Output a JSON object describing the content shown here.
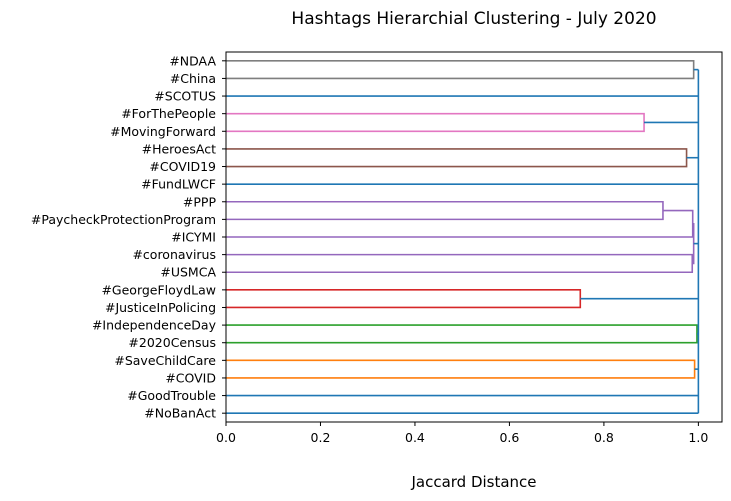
{
  "chart_data": {
    "type": "dendrogram",
    "orientation": "horizontal",
    "title": "Hashtags Hierarchial Clustering - July 2020",
    "xlabel": "Jaccard Distance",
    "ylabel": "",
    "xlim": [
      0,
      1.05
    ],
    "xticks": [
      0.0,
      0.2,
      0.4,
      0.6,
      0.8,
      1.0
    ],
    "xtick_labels": [
      "0.0",
      "0.2",
      "0.4",
      "0.6",
      "0.8",
      "1.0"
    ],
    "grid": false,
    "leaves": [
      "#NDAA",
      "#China",
      "#SCOTUS",
      "#ForThePeople",
      "#MovingForward",
      "#HeroesAct",
      "#COVID19",
      "#FundLWCF",
      "#PPP",
      "#PaycheckProtectionProgram",
      "#ICYMI",
      "#coronavirus",
      "#USMCA",
      "#GeorgeFloydLaw",
      "#JusticeInPolicing",
      "#IndependenceDay",
      "#2020Census",
      "#SaveChildCare",
      "#COVID",
      "#GoodTrouble",
      "#NoBanAct"
    ],
    "merges": [
      {
        "a": "L0",
        "b": "L1",
        "distance": 0.99,
        "color": "#7f7f7f"
      },
      {
        "a": "L3",
        "b": "L4",
        "distance": 0.885,
        "color": "#e377c2"
      },
      {
        "a": "L5",
        "b": "L6",
        "distance": 0.975,
        "color": "#8c564b"
      },
      {
        "a": "L8",
        "b": "L9",
        "distance": 0.925,
        "color": "#9467bd"
      },
      {
        "a": "M3",
        "b": "L10",
        "distance": 0.988,
        "color": "#9467bd"
      },
      {
        "a": "L11",
        "b": "L12",
        "distance": 0.987,
        "color": "#9467bd"
      },
      {
        "a": "M4",
        "b": "M5",
        "distance": 0.99,
        "color": "#9467bd"
      },
      {
        "a": "L13",
        "b": "L14",
        "distance": 0.75,
        "color": "#d62728"
      },
      {
        "a": "L15",
        "b": "L16",
        "distance": 0.997,
        "color": "#2ca02c"
      },
      {
        "a": "L17",
        "b": "L18",
        "distance": 0.992,
        "color": "#ff7f0e"
      }
    ],
    "root": {
      "distance": 1.0,
      "color": "#1f77b4"
    }
  }
}
